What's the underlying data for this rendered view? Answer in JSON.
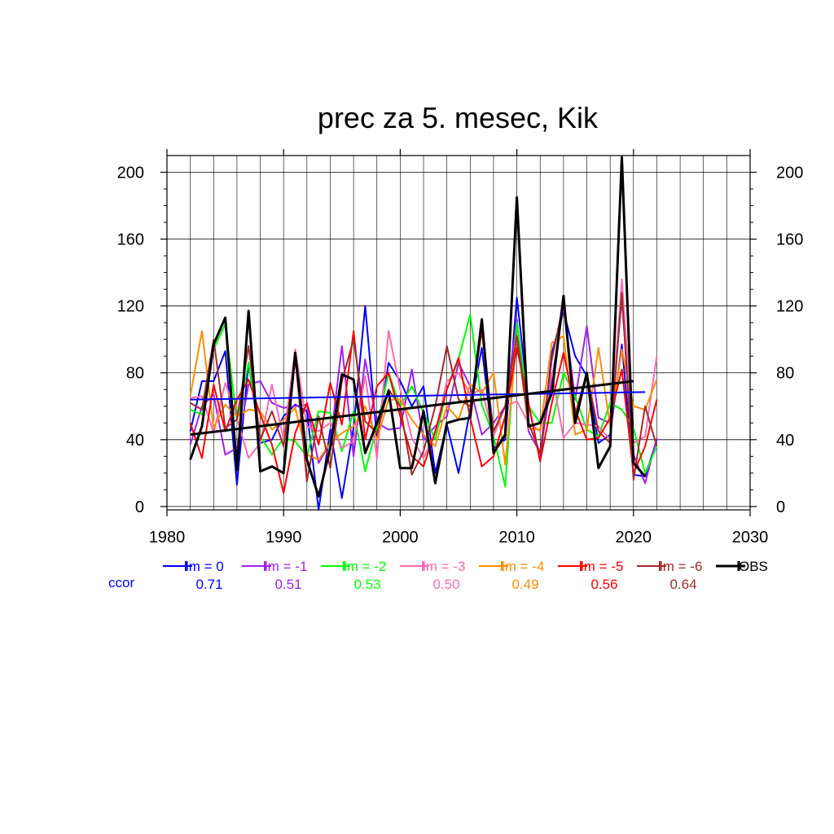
{
  "chart_data": {
    "type": "line",
    "title": "prec za 5. mesec, Kik",
    "xlabel": "",
    "ylabel": "",
    "xlim": [
      1980,
      2030
    ],
    "ylim": [
      -2,
      210
    ],
    "x_ticks": [
      1980,
      1990,
      2000,
      2010,
      2020,
      2030
    ],
    "y_ticks": [
      0,
      40,
      80,
      120,
      160,
      200
    ],
    "grid": true,
    "x": [
      1982,
      1983,
      1984,
      1985,
      1986,
      1987,
      1988,
      1989,
      1990,
      1991,
      1992,
      1993,
      1994,
      1995,
      1996,
      1997,
      1998,
      1999,
      2000,
      2001,
      2002,
      2003,
      2004,
      2005,
      2006,
      2007,
      2008,
      2009,
      2010,
      2011,
      2012,
      2013,
      2014,
      2015,
      2016,
      2017,
      2018,
      2019,
      2020,
      2021,
      2022
    ],
    "series": [
      {
        "name": "lm = 0",
        "color": "#0000ff",
        "values": [
          45,
          75,
          75,
          93,
          13,
          86,
          38,
          40,
          54,
          61,
          57,
          -2,
          46,
          5,
          47,
          120,
          40,
          86,
          75,
          60,
          72,
          20,
          49,
          20,
          58,
          95,
          35,
          40,
          125,
          62,
          27,
          92,
          117,
          90,
          78,
          38,
          43,
          97,
          19,
          18,
          40
        ]
      },
      {
        "name": "lm = -1",
        "color": "#a020f0",
        "values": [
          37,
          60,
          67,
          31,
          35,
          73,
          75,
          62,
          59,
          60,
          61,
          26,
          38,
          96,
          30,
          88,
          50,
          46,
          47,
          82,
          40,
          48,
          54,
          86,
          72,
          43,
          50,
          60,
          112,
          45,
          32,
          76,
          120,
          64,
          108,
          53,
          50,
          124,
          31,
          14,
          41
        ]
      },
      {
        "name": "lm = -2",
        "color": "#00ff00",
        "values": [
          58,
          55,
          94,
          109,
          51,
          86,
          42,
          31,
          41,
          39,
          30,
          57,
          56,
          33,
          57,
          21,
          48,
          80,
          60,
          72,
          56,
          40,
          70,
          88,
          115,
          61,
          42,
          12,
          110,
          60,
          50,
          50,
          80,
          66,
          46,
          42,
          62,
          58,
          47,
          20,
          36
        ]
      },
      {
        "name": "lm = -3",
        "color": "#ff69b4",
        "values": [
          65,
          66,
          44,
          74,
          53,
          29,
          38,
          73,
          40,
          94,
          48,
          45,
          50,
          35,
          39,
          78,
          29,
          105,
          70,
          41,
          29,
          44,
          75,
          80,
          67,
          70,
          42,
          60,
          63,
          50,
          45,
          80,
          41,
          50,
          49,
          48,
          40,
          136,
          38,
          42,
          90
        ]
      },
      {
        "name": "lm = -4",
        "color": "#ff8c00",
        "values": [
          66,
          105,
          47,
          61,
          54,
          58,
          57,
          46,
          52,
          59,
          31,
          28,
          38,
          44,
          48,
          60,
          40,
          64,
          64,
          52,
          43,
          36,
          60,
          52,
          73,
          68,
          80,
          25,
          102,
          47,
          46,
          98,
          102,
          43,
          46,
          95,
          48,
          94,
          60,
          58,
          76
        ]
      },
      {
        "name": "lm = -5",
        "color": "#ff0000",
        "values": [
          50,
          29,
          73,
          45,
          64,
          76,
          55,
          37,
          8,
          44,
          62,
          37,
          74,
          49,
          105,
          40,
          72,
          80,
          54,
          30,
          24,
          45,
          70,
          89,
          53,
          24,
          30,
          54,
          95,
          62,
          27,
          62,
          92,
          58,
          40,
          41,
          53,
          82,
          20,
          36,
          64
        ]
      },
      {
        "name": "lm = -6",
        "color": "#a52a2a",
        "values": [
          62,
          58,
          100,
          47,
          52,
          96,
          40,
          57,
          36,
          89,
          15,
          54,
          23,
          75,
          100,
          51,
          44,
          70,
          60,
          19,
          33,
          60,
          96,
          64,
          60,
          105,
          45,
          60,
          102,
          50,
          32,
          88,
          122,
          55,
          80,
          45,
          38,
          128,
          16,
          60,
          36
        ]
      },
      {
        "name": "OBS",
        "color": "#000000",
        "values": [
          28,
          48,
          97,
          113,
          22,
          117,
          21,
          24,
          20,
          92,
          28,
          6,
          35,
          79,
          76,
          32,
          50,
          69,
          23,
          23,
          57,
          14,
          50,
          52,
          53,
          112,
          32,
          43,
          185,
          48,
          50,
          68,
          126,
          50,
          80,
          23,
          36,
          209,
          26,
          18,
          null
        ]
      }
    ],
    "trend_lines": [
      {
        "series": "lm = 0",
        "color": "#0000ff",
        "x": [
          1982,
          2021
        ],
        "y": [
          64,
          68.5
        ]
      },
      {
        "series": "OBS",
        "color": "#000000",
        "x": [
          1982,
          2020
        ],
        "y": [
          43,
          75
        ]
      }
    ],
    "ccor": {
      "label": "ccor",
      "values": [
        "0.71",
        "0.51",
        "0.53",
        "0.50",
        "0.49",
        "0.56",
        "0.64"
      ]
    }
  }
}
